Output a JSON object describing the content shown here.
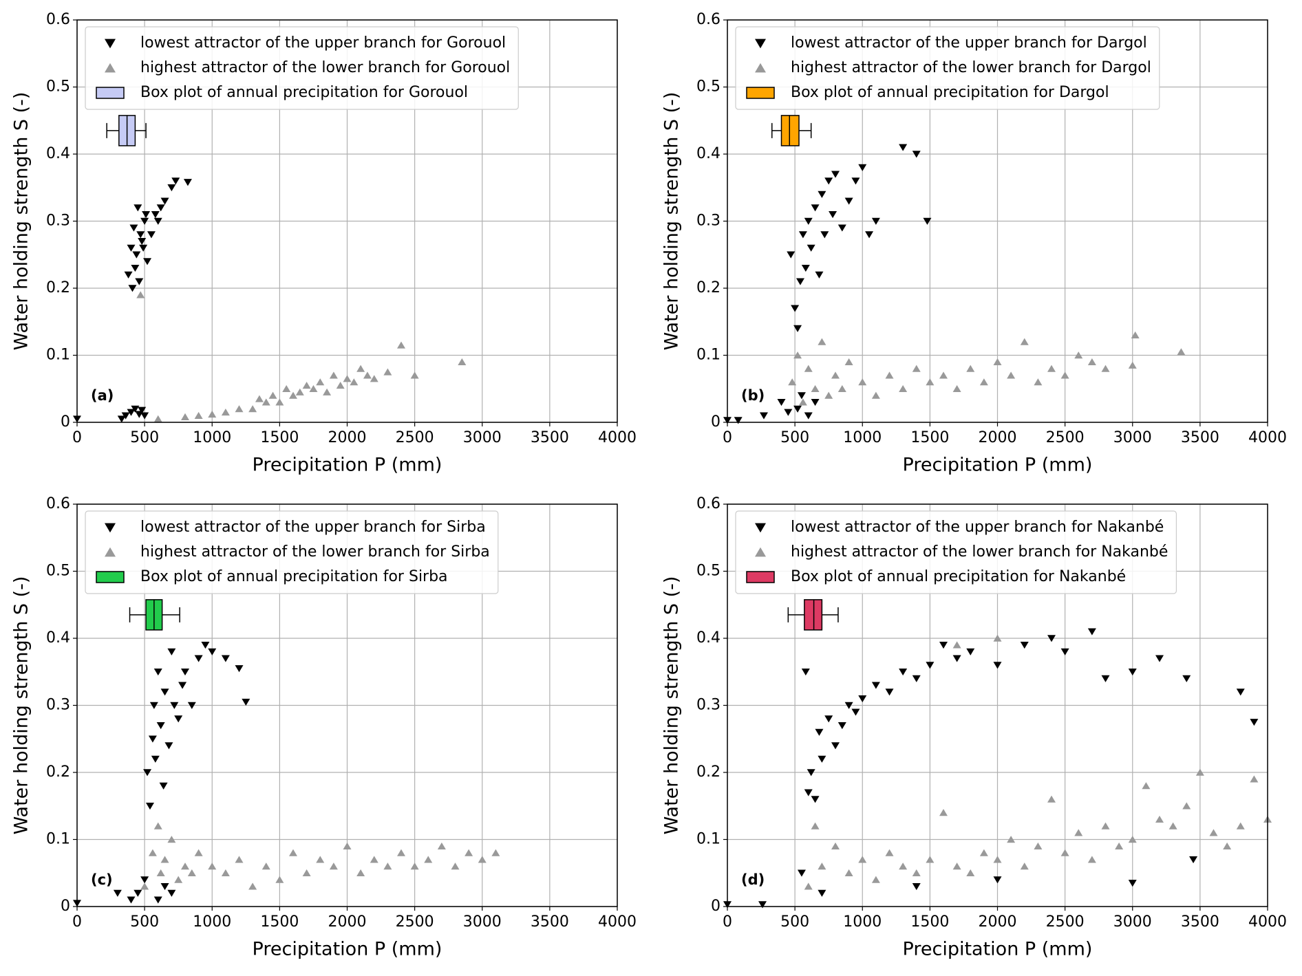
{
  "chart_data": [
    {
      "type": "scatter",
      "panel_label": "(a)",
      "xlabel": "Precipitation P (mm)",
      "ylabel": "Water holding strength S (-)",
      "xlim": [
        0,
        4000
      ],
      "ylim": [
        0,
        0.6
      ],
      "xticks": [
        0,
        500,
        1000,
        1500,
        2000,
        2500,
        3000,
        3500,
        4000
      ],
      "yticks": [
        0,
        0.1,
        0.2,
        0.3,
        0.4,
        0.5,
        0.6
      ],
      "grid": true,
      "legend": "upper left",
      "series": [
        {
          "name": "lowest attractor of the upper branch for Gorouol",
          "marker": "v",
          "color": "#000000",
          "x": [
            0,
            330,
            360,
            400,
            430,
            460,
            480,
            500,
            380,
            400,
            420,
            440,
            460,
            480,
            500,
            520,
            550,
            580,
            600,
            620,
            650,
            700,
            730,
            820,
            410,
            430,
            450,
            470,
            490,
            510
          ],
          "values": [
            0.005,
            0.005,
            0.01,
            0.015,
            0.02,
            0.012,
            0.018,
            0.01,
            0.22,
            0.26,
            0.29,
            0.25,
            0.21,
            0.27,
            0.3,
            0.24,
            0.28,
            0.31,
            0.3,
            0.32,
            0.33,
            0.35,
            0.36,
            0.358,
            0.2,
            0.23,
            0.32,
            0.28,
            0.26,
            0.31
          ]
        },
        {
          "name": "highest attractor of the lower branch for Gorouol",
          "marker": "^",
          "color": "#999999",
          "x": [
            470,
            600,
            800,
            900,
            1000,
            1100,
            1200,
            1300,
            1350,
            1400,
            1450,
            1500,
            1550,
            1600,
            1650,
            1700,
            1750,
            1800,
            1850,
            1900,
            1950,
            2000,
            2050,
            2100,
            2150,
            2200,
            2300,
            2400,
            2500,
            2850
          ],
          "values": [
            0.19,
            0.005,
            0.008,
            0.01,
            0.012,
            0.015,
            0.02,
            0.02,
            0.035,
            0.03,
            0.04,
            0.03,
            0.05,
            0.04,
            0.045,
            0.055,
            0.05,
            0.06,
            0.045,
            0.07,
            0.055,
            0.065,
            0.06,
            0.08,
            0.07,
            0.065,
            0.075,
            0.115,
            0.07,
            0.09
          ]
        }
      ],
      "box": {
        "name": "Box plot of annual precipitation for Gorouol",
        "color": "#c6cbf5",
        "position": 0.435,
        "stats": [
          220,
          310,
          370,
          430,
          510
        ]
      }
    },
    {
      "type": "scatter",
      "panel_label": "(b)",
      "xlabel": "Precipitation P (mm)",
      "ylabel": "Water holding strength S (-)",
      "xlim": [
        0,
        4000
      ],
      "ylim": [
        0,
        0.6
      ],
      "xticks": [
        0,
        500,
        1000,
        1500,
        2000,
        2500,
        3000,
        3500,
        4000
      ],
      "yticks": [
        0,
        0.1,
        0.2,
        0.3,
        0.4,
        0.5,
        0.6
      ],
      "grid": true,
      "legend": "upper left",
      "series": [
        {
          "name": "lowest attractor of the upper branch for Dargol",
          "marker": "v",
          "color": "#000000",
          "x": [
            0,
            80,
            270,
            400,
            450,
            470,
            500,
            520,
            540,
            560,
            580,
            600,
            620,
            650,
            680,
            700,
            720,
            750,
            780,
            800,
            850,
            900,
            950,
            1000,
            1050,
            1100,
            1300,
            1400,
            1480,
            520,
            550,
            600,
            650
          ],
          "values": [
            0.003,
            0.003,
            0.01,
            0.03,
            0.015,
            0.25,
            0.17,
            0.14,
            0.21,
            0.28,
            0.23,
            0.3,
            0.26,
            0.32,
            0.22,
            0.34,
            0.28,
            0.36,
            0.31,
            0.37,
            0.29,
            0.33,
            0.36,
            0.38,
            0.28,
            0.3,
            0.41,
            0.4,
            0.3,
            0.02,
            0.04,
            0.01,
            0.03
          ]
        },
        {
          "name": "highest attractor of the lower branch for Dargol",
          "marker": "^",
          "color": "#999999",
          "x": [
            480,
            520,
            560,
            600,
            650,
            700,
            750,
            800,
            850,
            900,
            1000,
            1100,
            1200,
            1300,
            1400,
            1500,
            1600,
            1700,
            1800,
            1900,
            2000,
            2100,
            2200,
            2300,
            2400,
            2500,
            2600,
            2700,
            2800,
            3000,
            3020,
            3360
          ],
          "values": [
            0.06,
            0.1,
            0.03,
            0.08,
            0.05,
            0.12,
            0.04,
            0.07,
            0.05,
            0.09,
            0.06,
            0.04,
            0.07,
            0.05,
            0.08,
            0.06,
            0.07,
            0.05,
            0.08,
            0.06,
            0.09,
            0.07,
            0.12,
            0.06,
            0.08,
            0.07,
            0.1,
            0.09,
            0.08,
            0.085,
            0.13,
            0.105
          ]
        }
      ],
      "box": {
        "name": "Box plot of annual precipitation for Dargol",
        "color": "#ffa500",
        "position": 0.435,
        "stats": [
          330,
          400,
          460,
          530,
          620
        ]
      }
    },
    {
      "type": "scatter",
      "panel_label": "(c)",
      "xlabel": "Precipitation P (mm)",
      "ylabel": "Water holding strength S (-)",
      "xlim": [
        0,
        4000
      ],
      "ylim": [
        0,
        0.6
      ],
      "xticks": [
        0,
        500,
        1000,
        1500,
        2000,
        2500,
        3000,
        3500,
        4000
      ],
      "yticks": [
        0,
        0.1,
        0.2,
        0.3,
        0.4,
        0.5,
        0.6
      ],
      "grid": true,
      "legend": "upper left",
      "series": [
        {
          "name": "lowest attractor of the upper branch for Sirba",
          "marker": "v",
          "color": "#000000",
          "x": [
            0,
            300,
            400,
            450,
            500,
            520,
            540,
            560,
            570,
            580,
            600,
            620,
            640,
            650,
            680,
            700,
            720,
            750,
            780,
            800,
            850,
            900,
            950,
            1000,
            1100,
            1200,
            1250,
            600,
            650,
            700
          ],
          "values": [
            0.005,
            0.02,
            0.01,
            0.02,
            0.04,
            0.2,
            0.15,
            0.25,
            0.3,
            0.22,
            0.35,
            0.27,
            0.18,
            0.32,
            0.24,
            0.38,
            0.3,
            0.28,
            0.33,
            0.35,
            0.3,
            0.37,
            0.39,
            0.38,
            0.37,
            0.355,
            0.305,
            0.01,
            0.03,
            0.02
          ]
        },
        {
          "name": "highest attractor of the lower branch for Sirba",
          "marker": "^",
          "color": "#999999",
          "x": [
            500,
            560,
            600,
            620,
            650,
            700,
            750,
            800,
            850,
            900,
            1000,
            1100,
            1200,
            1300,
            1400,
            1500,
            1600,
            1700,
            1800,
            1900,
            2000,
            2100,
            2200,
            2300,
            2400,
            2500,
            2600,
            2700,
            2800,
            2900,
            3000,
            3100
          ],
          "values": [
            0.03,
            0.08,
            0.12,
            0.05,
            0.07,
            0.1,
            0.04,
            0.06,
            0.05,
            0.08,
            0.06,
            0.05,
            0.07,
            0.03,
            0.06,
            0.04,
            0.08,
            0.05,
            0.07,
            0.06,
            0.09,
            0.05,
            0.07,
            0.06,
            0.08,
            0.06,
            0.07,
            0.09,
            0.06,
            0.08,
            0.07,
            0.08
          ]
        }
      ],
      "box": {
        "name": "Box plot of annual precipitation for Sirba",
        "color": "#22cc4c",
        "position": 0.435,
        "stats": [
          390,
          510,
          570,
          630,
          760
        ]
      }
    },
    {
      "type": "scatter",
      "panel_label": "(d)",
      "xlabel": "Precipitation P (mm)",
      "ylabel": "Water holding strength S (-)",
      "xlim": [
        0,
        4000
      ],
      "ylim": [
        0,
        0.6
      ],
      "xticks": [
        0,
        500,
        1000,
        1500,
        2000,
        2500,
        3000,
        3500,
        4000
      ],
      "yticks": [
        0,
        0.1,
        0.2,
        0.3,
        0.4,
        0.5,
        0.6
      ],
      "grid": true,
      "legend": "upper left",
      "series": [
        {
          "name": "lowest attractor of the upper branch for Nakanbé",
          "marker": "v",
          "color": "#000000",
          "x": [
            0,
            260,
            550,
            580,
            600,
            620,
            650,
            680,
            700,
            750,
            800,
            850,
            900,
            950,
            1000,
            1100,
            1200,
            1300,
            1400,
            1500,
            1600,
            1700,
            1800,
            2000,
            2200,
            2400,
            2500,
            2700,
            2800,
            3000,
            3200,
            3400,
            3800,
            3900,
            700,
            1400,
            2000,
            3000,
            3450
          ],
          "values": [
            0.003,
            0.003,
            0.05,
            0.35,
            0.17,
            0.2,
            0.16,
            0.26,
            0.22,
            0.28,
            0.24,
            0.27,
            0.3,
            0.29,
            0.31,
            0.33,
            0.32,
            0.35,
            0.34,
            0.36,
            0.39,
            0.37,
            0.38,
            0.36,
            0.39,
            0.4,
            0.38,
            0.41,
            0.34,
            0.35,
            0.37,
            0.34,
            0.32,
            0.275,
            0.02,
            0.03,
            0.04,
            0.035,
            0.07
          ]
        },
        {
          "name": "highest attractor of the lower branch for Nakanbé",
          "marker": "^",
          "color": "#999999",
          "x": [
            600,
            650,
            700,
            800,
            900,
            1000,
            1100,
            1200,
            1300,
            1400,
            1500,
            1600,
            1700,
            1800,
            1900,
            2000,
            2100,
            2200,
            2300,
            2400,
            2500,
            2600,
            2700,
            2800,
            2900,
            3000,
            3100,
            3200,
            3300,
            3400,
            3500,
            3600,
            3700,
            3800,
            3900,
            4000,
            1700,
            2000
          ],
          "values": [
            0.03,
            0.12,
            0.06,
            0.09,
            0.05,
            0.07,
            0.04,
            0.08,
            0.06,
            0.05,
            0.07,
            0.14,
            0.06,
            0.05,
            0.08,
            0.07,
            0.1,
            0.06,
            0.09,
            0.16,
            0.08,
            0.11,
            0.07,
            0.12,
            0.09,
            0.1,
            0.18,
            0.13,
            0.12,
            0.15,
            0.2,
            0.11,
            0.09,
            0.12,
            0.19,
            0.13,
            0.39,
            0.4
          ]
        }
      ],
      "box": {
        "name": "Box plot of annual precipitation for Nakanbé",
        "color": "#dd3a63",
        "position": 0.435,
        "stats": [
          450,
          570,
          640,
          700,
          820
        ]
      }
    }
  ]
}
